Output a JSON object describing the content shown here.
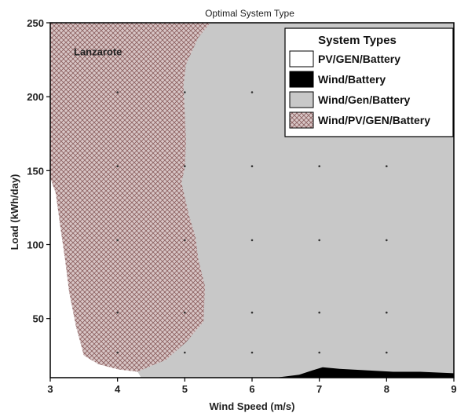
{
  "chart_data": {
    "type": "area",
    "title": "Optimal System Type",
    "xlabel": "Wind Speed (m/s)",
    "ylabel": "Load (kWh/day)",
    "xlim": [
      3,
      9
    ],
    "ylim": [
      10,
      250
    ],
    "xticks": [
      3,
      4,
      5,
      6,
      7,
      8,
      9
    ],
    "yticks": [
      50,
      100,
      150,
      200,
      250
    ],
    "grid": "dots",
    "legend": {
      "title": "System Types",
      "position": "top-right",
      "entries": [
        {
          "label": "PV/GEN/Battery",
          "color": "#ffffff"
        },
        {
          "label": "Wind/Battery",
          "color": "#000000"
        },
        {
          "label": "Wind/Gen/Battery",
          "color": "#c8c8c8"
        },
        {
          "label": "Wind/PV/GEN/Battery",
          "color": "#c9b2b2"
        }
      ]
    },
    "annotations": [
      {
        "text": "Lanzarote",
        "x": 3.35,
        "y": 228
      }
    ],
    "dots": {
      "x": [
        4,
        5,
        6,
        7,
        8
      ],
      "y": [
        27,
        54,
        103,
        153,
        203
      ]
    },
    "regions": [
      {
        "name": "Wind/PV/GEN/Battery",
        "boundary": [
          [
            3.0,
            250
          ],
          [
            5.38,
            250
          ],
          [
            5.2,
            240
          ],
          [
            5.02,
            222
          ],
          [
            4.98,
            208
          ],
          [
            5.02,
            170
          ],
          [
            5.0,
            152
          ],
          [
            4.95,
            142
          ],
          [
            5.06,
            120
          ],
          [
            5.16,
            105
          ],
          [
            5.2,
            90
          ],
          [
            5.3,
            72
          ],
          [
            5.28,
            48
          ],
          [
            5.02,
            34
          ],
          [
            4.72,
            22
          ],
          [
            4.45,
            17
          ],
          [
            4.3,
            14
          ],
          [
            4.02,
            15.5
          ],
          [
            3.72,
            19
          ],
          [
            3.5,
            25
          ],
          [
            3.38,
            45
          ],
          [
            3.28,
            68
          ],
          [
            3.22,
            90
          ],
          [
            3.15,
            112
          ],
          [
            3.08,
            135
          ],
          [
            3.0,
            145
          ]
        ]
      },
      {
        "name": "Wind/Battery",
        "boundary": [
          [
            6.35,
            10
          ],
          [
            6.7,
            12
          ],
          [
            6.9,
            15
          ],
          [
            7.05,
            17
          ],
          [
            7.3,
            16
          ],
          [
            7.7,
            15
          ],
          [
            8.1,
            14
          ],
          [
            8.5,
            14
          ],
          [
            9.0,
            13
          ],
          [
            9.0,
            10
          ]
        ]
      },
      {
        "name": "PV/GEN/Battery",
        "boundary": [
          [
            3.0,
            145
          ],
          [
            3.08,
            135
          ],
          [
            3.15,
            112
          ],
          [
            3.22,
            90
          ],
          [
            3.28,
            68
          ],
          [
            3.38,
            45
          ],
          [
            3.5,
            25
          ],
          [
            3.72,
            19
          ],
          [
            4.02,
            15.5
          ],
          [
            4.3,
            14
          ],
          [
            4.35,
            10
          ],
          [
            3.0,
            10
          ]
        ]
      }
    ]
  }
}
